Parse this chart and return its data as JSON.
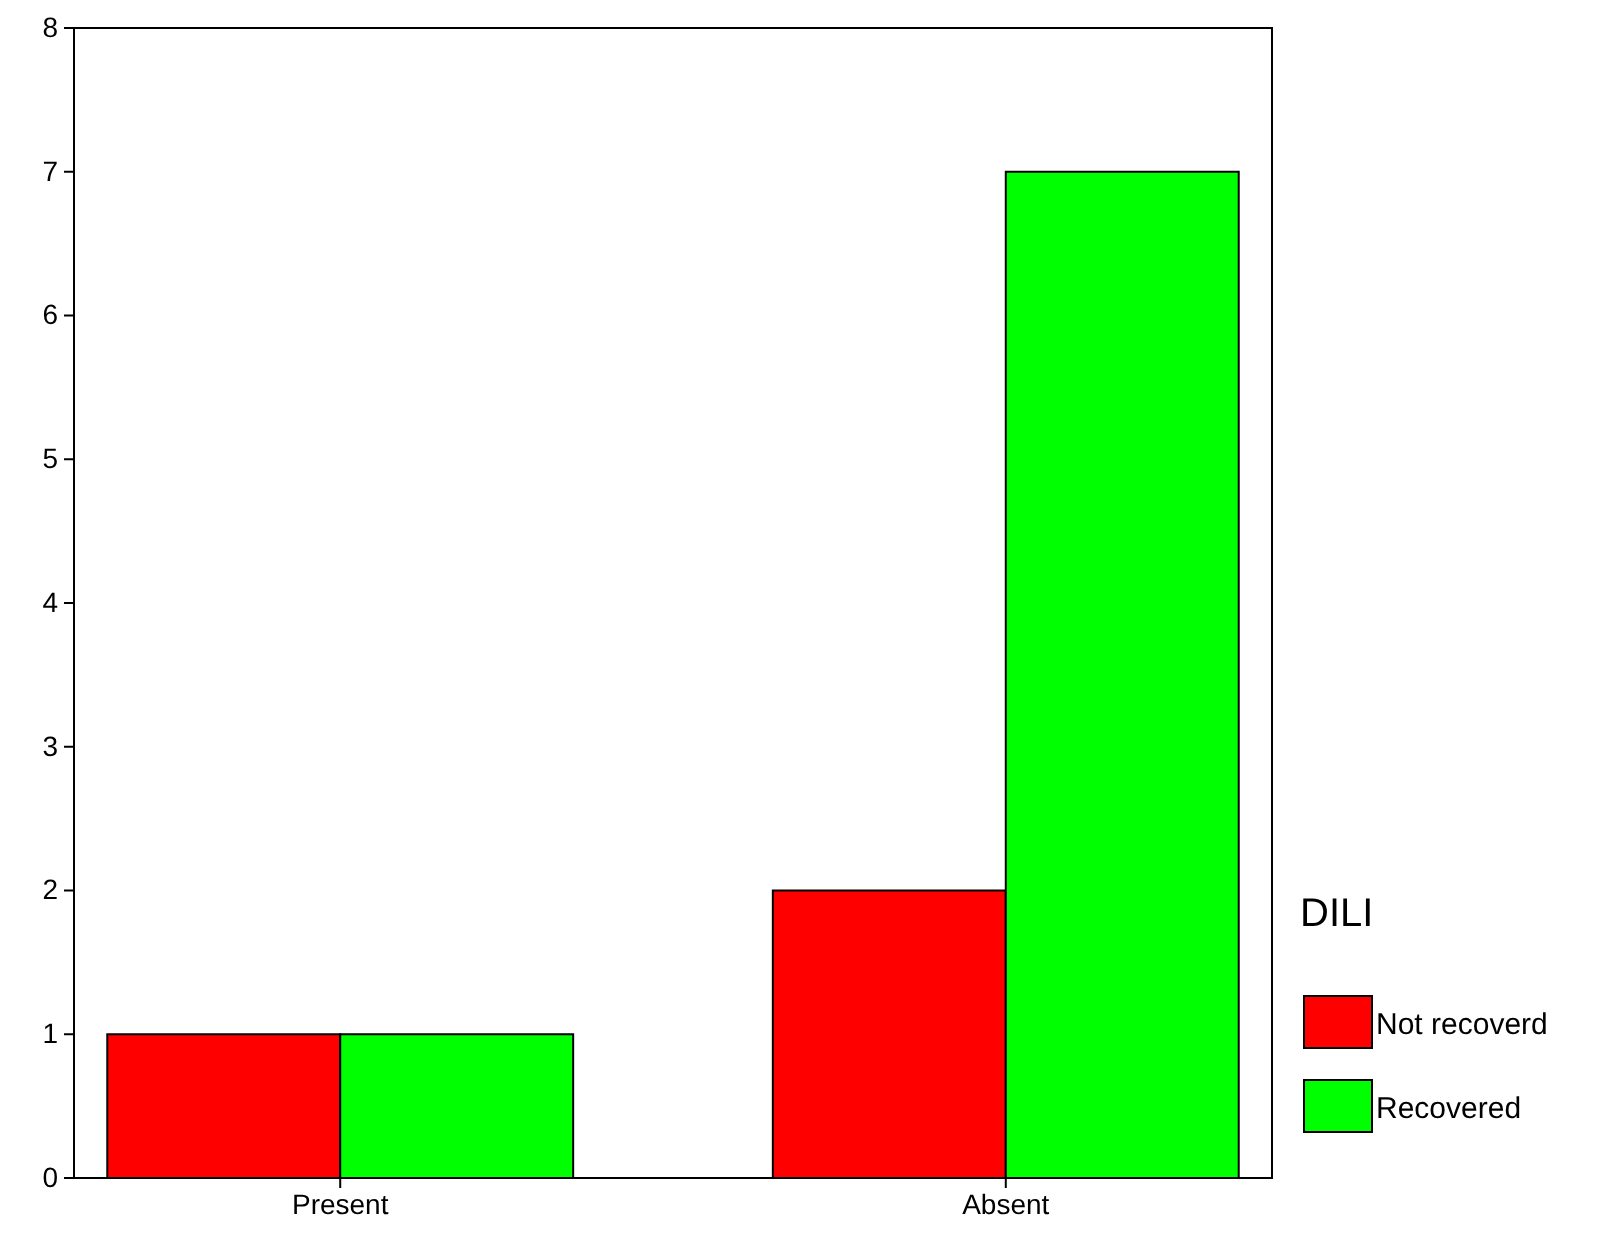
{
  "chart_data": {
    "type": "bar",
    "categories": [
      "Present",
      "Absent"
    ],
    "series": [
      {
        "name": "Not recoverd",
        "color": "#ff0000",
        "values": [
          1,
          2
        ]
      },
      {
        "name": "Recovered",
        "color": "#00ff00",
        "values": [
          1,
          7
        ]
      }
    ],
    "ylim": [
      0,
      8
    ],
    "yticks": [
      0,
      1,
      2,
      3,
      4,
      5,
      6,
      7,
      8
    ],
    "grid": false,
    "legend": "right",
    "legend_title": "DILI"
  }
}
